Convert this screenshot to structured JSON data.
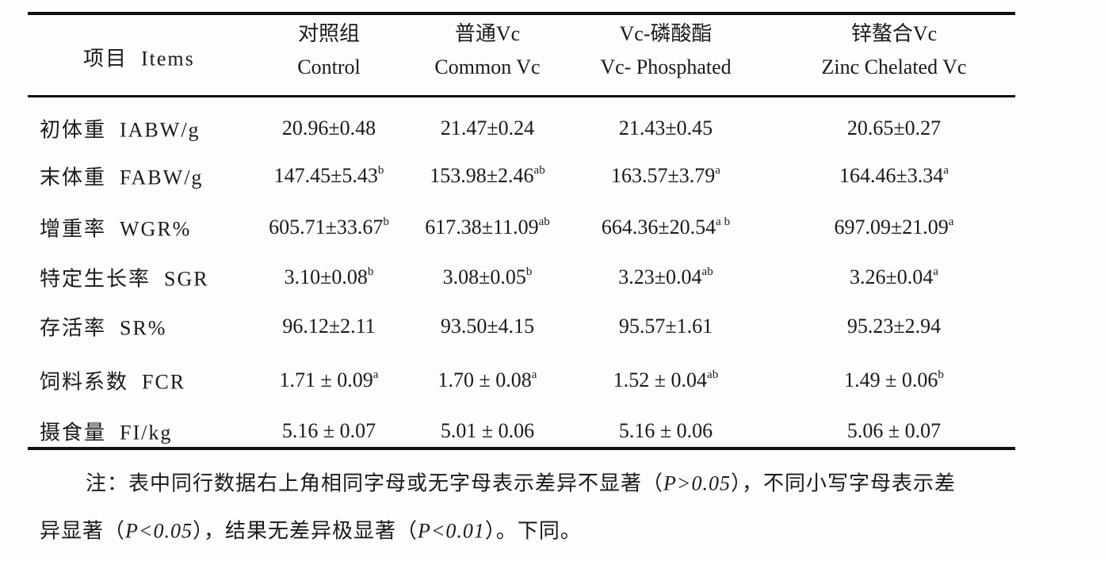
{
  "table": {
    "header": {
      "items": "项目  Items",
      "columns": [
        [
          "对照组",
          "Control"
        ],
        [
          "普通Vc",
          "Common Vc"
        ],
        [
          "Vc-磷酸酯",
          "Vc- Phosphated"
        ],
        [
          "锌螯合Vc",
          "Zinc Chelated Vc"
        ]
      ]
    },
    "rows": [
      {
        "label": "初体重  IABW/g",
        "cells": [
          {
            "text": "20.96±0.48"
          },
          {
            "text": "21.47±0.24"
          },
          {
            "text": "21.43±0.45"
          },
          {
            "text": "20.65±0.27"
          }
        ]
      },
      {
        "label": "末体重  FABW/g",
        "cells": [
          {
            "text": "147.45±5.43",
            "sup": "b"
          },
          {
            "text": "153.98±2.46",
            "sup": "ab"
          },
          {
            "text": "163.57±3.79",
            "sup": "a"
          },
          {
            "text": "164.46±3.34",
            "sup": "a"
          }
        ]
      },
      {
        "label": "增重率  WGR%",
        "cells": [
          {
            "text": "605.71±33.67",
            "sup": "b"
          },
          {
            "text": "617.38±11.09",
            "sup": "ab"
          },
          {
            "text": "664.36±20.54",
            "sup": "a b"
          },
          {
            "text": "697.09±21.09",
            "sup": "a"
          }
        ]
      },
      {
        "label": "特定生长率  SGR",
        "cells": [
          {
            "text": "3.10±0.08",
            "sup": "b"
          },
          {
            "text": "3.08±0.05",
            "sup": "b"
          },
          {
            "text": "3.23±0.04",
            "sup": "ab"
          },
          {
            "text": "3.26±0.04",
            "sup": "a"
          }
        ]
      },
      {
        "label": "存活率  SR%",
        "cells": [
          {
            "text": "96.12±2.11"
          },
          {
            "text": "93.50±4.15"
          },
          {
            "text": "95.57±1.61"
          },
          {
            "text": "95.23±2.94"
          }
        ]
      },
      {
        "label": "饲料系数  FCR",
        "cells": [
          {
            "text": "1.71 ± 0.09",
            "sup": "a"
          },
          {
            "text": "1.70 ± 0.08",
            "sup": "a"
          },
          {
            "text": "1.52 ± 0.04",
            "sup": "ab"
          },
          {
            "text": "1.49 ± 0.06",
            "sup": "b"
          }
        ]
      },
      {
        "label": "摄食量  FI/kg",
        "cells": [
          {
            "text": "5.16 ± 0.07"
          },
          {
            "text": "5.01 ± 0.06"
          },
          {
            "text": "5.16 ± 0.06"
          },
          {
            "text": "5.06 ± 0.07"
          }
        ]
      }
    ]
  },
  "note": {
    "lines": [
      [
        {
          "text": "注：表中同行数据右上角相同字母或无字母表示差异不显著（"
        },
        {
          "text": "P>0.05",
          "italic": true
        },
        {
          "text": "），不同小写字母表示差"
        }
      ],
      [
        {
          "text": "异显著（"
        },
        {
          "text": "P<0.05",
          "italic": true
        },
        {
          "text": "），结果无差异极显著（"
        },
        {
          "text": "P<0.01",
          "italic": true
        },
        {
          "text": "）。下同。"
        }
      ]
    ]
  }
}
